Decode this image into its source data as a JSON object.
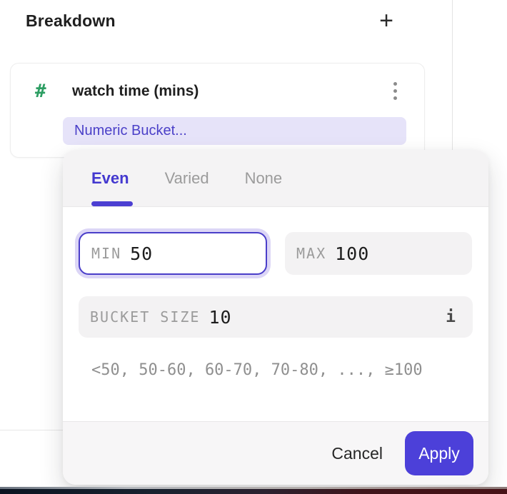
{
  "panel": {
    "title": "Breakdown",
    "add_icon": "+"
  },
  "card": {
    "type_icon": "#",
    "title": "watch time (mins)",
    "bucket_label": "Numeric Bucket..."
  },
  "popover": {
    "tabs": [
      {
        "label": "Even",
        "active": true
      },
      {
        "label": "Varied",
        "active": false
      },
      {
        "label": "None",
        "active": false
      }
    ],
    "min": {
      "label": "MIN",
      "value": "50"
    },
    "max": {
      "label": "MAX",
      "value": "100"
    },
    "bucket_size": {
      "label": "BUCKET SIZE",
      "value": "10",
      "info_icon": "i"
    },
    "preview": "<50, 50-60, 60-70, 70-80, ..., ≥100",
    "cancel_label": "Cancel",
    "apply_label": "Apply"
  },
  "colors": {
    "accent": "#4C40D9",
    "accent_light_pill": "#E6E3F9",
    "hash_green": "#2D9E63",
    "label_gray": "#9B9B9B",
    "header_gray": "#F4F3F4"
  }
}
